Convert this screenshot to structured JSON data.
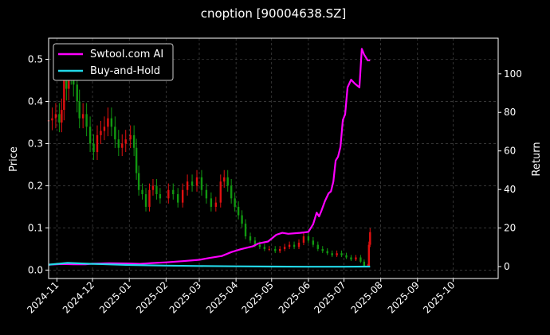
{
  "chart_data": {
    "type": "line",
    "title": "cnoption [90004638.SZ]",
    "xlabel": "",
    "ylabel": "Price",
    "y2label": "Return",
    "grid": true,
    "legend_placement": "top-left",
    "x_range": [
      "2024-10-25",
      "2025-11-08"
    ],
    "ylim": [
      -0.02,
      0.55
    ],
    "y2lim": [
      -6.2,
      118.5
    ],
    "x_ticks": [
      "2024-11",
      "2024-12",
      "2025-01",
      "2025-02",
      "2025-03",
      "2025-04",
      "2025-05",
      "2025-06",
      "2025-07",
      "2025-08",
      "2025-09",
      "2025-10"
    ],
    "y_ticks": [
      "0.0",
      "0.1",
      "0.2",
      "0.3",
      "0.4",
      "0.5"
    ],
    "y2_ticks": [
      "0",
      "20",
      "40",
      "60",
      "80",
      "100"
    ],
    "colors": {
      "strategy": "#ff00ff",
      "buyhold": "#22d8e8",
      "up": "#e01010",
      "down": "#119911",
      "grid": "#555555"
    },
    "series": [
      {
        "name": "Swtool.com AI",
        "axis": "right",
        "points": [
          [
            "2024-10-25",
            1.0
          ],
          [
            "2024-11-05",
            1.3
          ],
          [
            "2024-11-15",
            1.2
          ],
          [
            "2024-11-25",
            1.2
          ],
          [
            "2024-12-01",
            1.5
          ],
          [
            "2024-12-15",
            1.7
          ],
          [
            "2025-01-01",
            1.6
          ],
          [
            "2025-01-10",
            1.4
          ],
          [
            "2025-01-20",
            1.8
          ],
          [
            "2025-02-01",
            2.2
          ],
          [
            "2025-02-15",
            2.8
          ],
          [
            "2025-03-01",
            3.5
          ],
          [
            "2025-03-10",
            4.5
          ],
          [
            "2025-03-20",
            5.5
          ],
          [
            "2025-03-28",
            7.5
          ],
          [
            "2025-04-05",
            9.0
          ],
          [
            "2025-04-15",
            10.5
          ],
          [
            "2025-04-20",
            12.0
          ],
          [
            "2025-04-28",
            13.0
          ],
          [
            "2025-05-05",
            16.5
          ],
          [
            "2025-05-10",
            17.5
          ],
          [
            "2025-05-15",
            17.0
          ],
          [
            "2025-05-25",
            17.5
          ],
          [
            "2025-06-01",
            18.0
          ],
          [
            "2025-06-05",
            22.0
          ],
          [
            "2025-06-08",
            28.0
          ],
          [
            "2025-06-10",
            26.0
          ],
          [
            "2025-06-12",
            29.0
          ],
          [
            "2025-06-15",
            34.0
          ],
          [
            "2025-06-18",
            38.0
          ],
          [
            "2025-06-20",
            39.0
          ],
          [
            "2025-06-22",
            44.0
          ],
          [
            "2025-06-24",
            55.0
          ],
          [
            "2025-06-26",
            57.0
          ],
          [
            "2025-06-28",
            62.0
          ],
          [
            "2025-06-30",
            76.0
          ],
          [
            "2025-07-02",
            79.0
          ],
          [
            "2025-07-04",
            93.0
          ],
          [
            "2025-07-07",
            97.0
          ],
          [
            "2025-07-10",
            95.0
          ],
          [
            "2025-07-14",
            93.0
          ],
          [
            "2025-07-16",
            113.0
          ],
          [
            "2025-07-18",
            110.0
          ],
          [
            "2025-07-21",
            107.0
          ],
          [
            "2025-07-23",
            107.0
          ]
        ]
      },
      {
        "name": "Buy-and-Hold",
        "axis": "right",
        "points": [
          [
            "2024-10-25",
            1.0
          ],
          [
            "2024-11-10",
            1.9
          ],
          [
            "2024-12-01",
            1.4
          ],
          [
            "2025-01-01",
            0.8
          ],
          [
            "2025-02-01",
            0.5
          ],
          [
            "2025-03-01",
            0.3
          ],
          [
            "2025-04-01",
            0.1
          ],
          [
            "2025-05-01",
            0.0
          ],
          [
            "2025-06-01",
            -0.1
          ],
          [
            "2025-07-01",
            -0.1
          ],
          [
            "2025-07-23",
            0.0
          ]
        ]
      }
    ],
    "price": {
      "axis": "left",
      "type": "candlestick",
      "points": [
        [
          "2024-10-25",
          0.355
        ],
        [
          "2024-10-28",
          0.36
        ],
        [
          "2024-10-31",
          0.37
        ],
        [
          "2024-11-03",
          0.35
        ],
        [
          "2024-11-05",
          0.38
        ],
        [
          "2024-11-07",
          0.45
        ],
        [
          "2024-11-09",
          0.43
        ],
        [
          "2024-11-11",
          0.49
        ],
        [
          "2024-11-13",
          0.47
        ],
        [
          "2024-11-15",
          0.44
        ],
        [
          "2024-11-18",
          0.4
        ],
        [
          "2024-11-20",
          0.36
        ],
        [
          "2024-11-23",
          0.37
        ],
        [
          "2024-11-26",
          0.34
        ],
        [
          "2024-11-29",
          0.3
        ],
        [
          "2024-12-02",
          0.28
        ],
        [
          "2024-12-05",
          0.32
        ],
        [
          "2024-12-08",
          0.33
        ],
        [
          "2024-12-11",
          0.34
        ],
        [
          "2024-12-14",
          0.36
        ],
        [
          "2024-12-17",
          0.34
        ],
        [
          "2024-12-20",
          0.31
        ],
        [
          "2024-12-23",
          0.29
        ],
        [
          "2024-12-26",
          0.3
        ],
        [
          "2024-12-29",
          0.31
        ],
        [
          "2025-01-02",
          0.32
        ],
        [
          "2025-01-05",
          0.29
        ],
        [
          "2025-01-07",
          0.23
        ],
        [
          "2025-01-09",
          0.19
        ],
        [
          "2025-01-12",
          0.18
        ],
        [
          "2025-01-15",
          0.15
        ],
        [
          "2025-01-18",
          0.19
        ],
        [
          "2025-01-21",
          0.2
        ],
        [
          "2025-01-24",
          0.18
        ],
        [
          "2025-01-27",
          0.17
        ],
        [
          "2025-02-03",
          0.19
        ],
        [
          "2025-02-07",
          0.18
        ],
        [
          "2025-02-11",
          0.16
        ],
        [
          "2025-02-15",
          0.19
        ],
        [
          "2025-02-19",
          0.21
        ],
        [
          "2025-02-23",
          0.2
        ],
        [
          "2025-02-27",
          0.22
        ],
        [
          "2025-03-03",
          0.19
        ],
        [
          "2025-03-07",
          0.17
        ],
        [
          "2025-03-11",
          0.15
        ],
        [
          "2025-03-15",
          0.16
        ],
        [
          "2025-03-19",
          0.21
        ],
        [
          "2025-03-22",
          0.22
        ],
        [
          "2025-03-25",
          0.2
        ],
        [
          "2025-03-28",
          0.17
        ],
        [
          "2025-03-31",
          0.15
        ],
        [
          "2025-04-03",
          0.13
        ],
        [
          "2025-04-06",
          0.11
        ],
        [
          "2025-04-09",
          0.08
        ],
        [
          "2025-04-13",
          0.07
        ],
        [
          "2025-04-17",
          0.06
        ],
        [
          "2025-04-21",
          0.055
        ],
        [
          "2025-04-25",
          0.05
        ],
        [
          "2025-04-29",
          0.05
        ],
        [
          "2025-05-04",
          0.045
        ],
        [
          "2025-05-08",
          0.05
        ],
        [
          "2025-05-12",
          0.055
        ],
        [
          "2025-05-16",
          0.06
        ],
        [
          "2025-05-20",
          0.055
        ],
        [
          "2025-05-24",
          0.065
        ],
        [
          "2025-05-28",
          0.08
        ],
        [
          "2025-06-01",
          0.07
        ],
        [
          "2025-06-05",
          0.06
        ],
        [
          "2025-06-09",
          0.05
        ],
        [
          "2025-06-13",
          0.045
        ],
        [
          "2025-06-17",
          0.04
        ],
        [
          "2025-06-21",
          0.035
        ],
        [
          "2025-06-25",
          0.04
        ],
        [
          "2025-06-29",
          0.035
        ],
        [
          "2025-07-03",
          0.03
        ],
        [
          "2025-07-07",
          0.025
        ],
        [
          "2025-07-11",
          0.03
        ],
        [
          "2025-07-15",
          0.02
        ],
        [
          "2025-07-18",
          0.01
        ],
        [
          "2025-07-21",
          0.01
        ],
        [
          "2025-07-22",
          0.06
        ],
        [
          "2025-07-23",
          0.09
        ]
      ]
    }
  }
}
